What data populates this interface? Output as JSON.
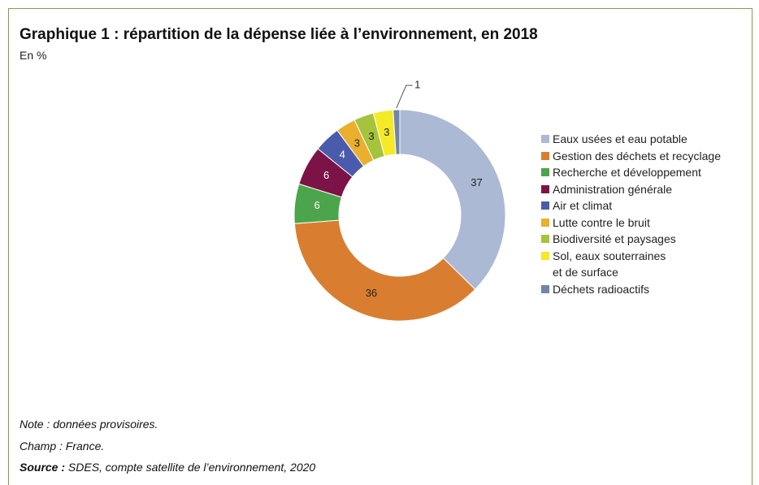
{
  "chart_data": {
    "type": "donut",
    "title": "Graphique 1 : répartition de la dépense liée à l’environnement, en 2018",
    "subtitle": "En %",
    "categories": [
      "Eaux usées et eau potable",
      "Gestion des déchets et recyclage",
      "Recherche et développement",
      "Administration générale",
      "Air et climat",
      "Lutte contre le bruit",
      "Biodiversité et paysages",
      "Sol, eaux souterraines\net de surface",
      "Déchets radioactifs"
    ],
    "values": [
      37,
      36,
      6,
      6,
      4,
      3,
      3,
      3,
      1
    ],
    "colors": [
      "#abb9d4",
      "#d97e30",
      "#4ca44c",
      "#7c1346",
      "#4b5bab",
      "#e9af2d",
      "#a6c33d",
      "#f6e926",
      "#7085a9"
    ],
    "legend": "right"
  },
  "notes": {
    "note": "Note : données provisoires.",
    "champ": "Champ : France.",
    "source_label": "Source :",
    "source_text": "SDES, compte satellite de l’environnement, 2020"
  }
}
